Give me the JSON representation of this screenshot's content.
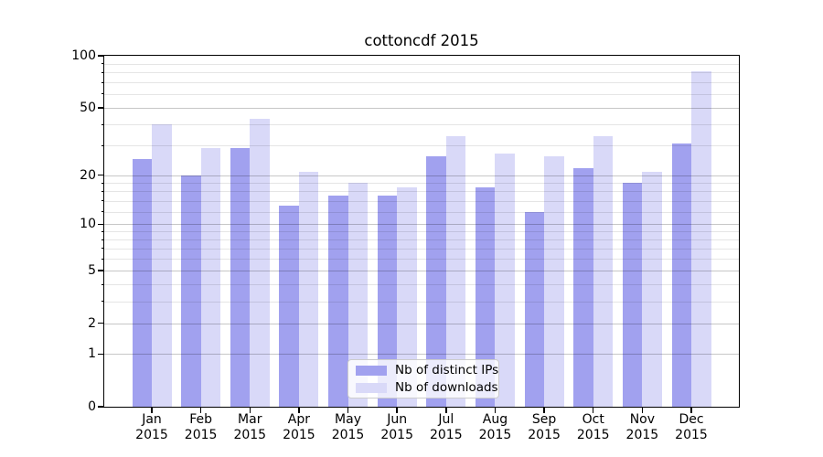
{
  "title": "cottoncdf 2015",
  "colors": {
    "distinct_ips": "#a1a1ef",
    "downloads": "#d9d9f8",
    "spine": "#000000"
  },
  "chart_data": {
    "type": "bar",
    "title": "cottoncdf 2015",
    "scale": "log10(1+v)",
    "categories": [
      "Jan",
      "Feb",
      "Mar",
      "Apr",
      "May",
      "Jun",
      "Jul",
      "Aug",
      "Sep",
      "Oct",
      "Nov",
      "Dec"
    ],
    "x_year_label": "2015",
    "series": [
      {
        "name": "Nb of distinct IPs",
        "color": "#a1a1ef",
        "values": [
          25,
          20,
          29,
          13,
          15,
          15,
          26,
          17,
          12,
          22,
          18,
          31
        ]
      },
      {
        "name": "Nb of downloads",
        "color": "#d9d9f8",
        "values": [
          40,
          29,
          43,
          21,
          18,
          17,
          34,
          27,
          26,
          34,
          21,
          81
        ]
      }
    ],
    "ylim": [
      0,
      100
    ],
    "y_major_ticks": [
      100,
      50,
      20,
      10,
      5,
      2,
      1,
      0
    ],
    "y_tick_labels": [
      "100",
      "50",
      "20",
      "10",
      "5",
      "2",
      "1",
      "0"
    ],
    "y_minor_ticks": [
      3,
      4,
      6,
      7,
      8,
      9,
      12,
      14,
      16,
      18,
      30,
      40,
      60,
      70,
      80,
      90
    ],
    "grid": true,
    "legend_position": "lower center"
  }
}
